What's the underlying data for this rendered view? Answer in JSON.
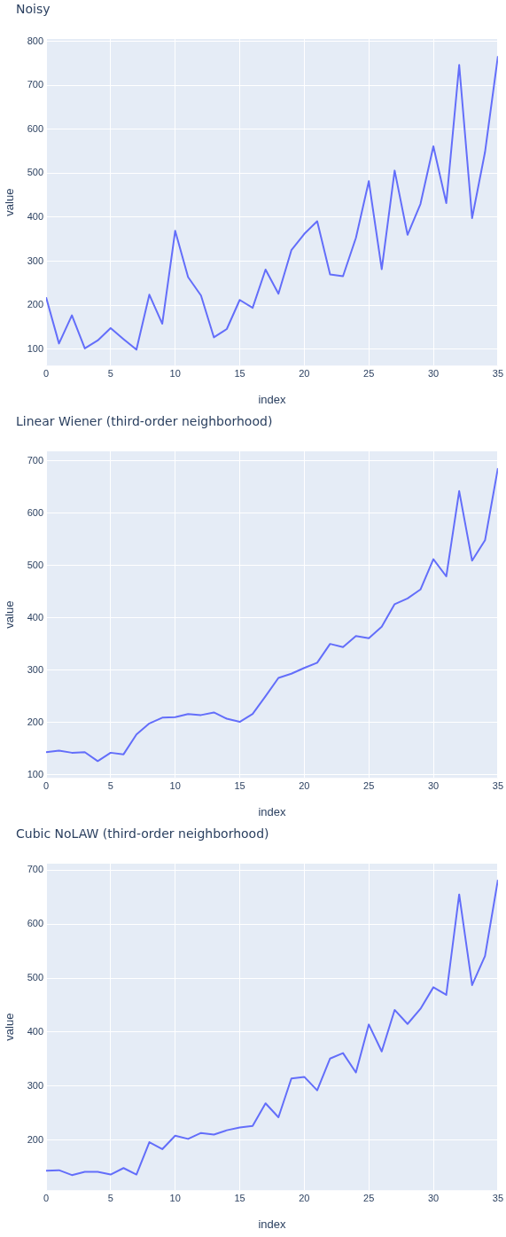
{
  "chart_data": [
    {
      "type": "line",
      "title": "Noisy",
      "xlabel": "index",
      "ylabel": "value",
      "color": "#636efa",
      "grid": true,
      "xlim": [
        0,
        35
      ],
      "xticks": [
        0,
        5,
        10,
        15,
        20,
        25,
        30,
        35
      ],
      "ylim": [
        63,
        805
      ],
      "yticks": [
        100,
        200,
        300,
        400,
        500,
        600,
        700,
        800
      ],
      "x": [
        0,
        1,
        2,
        3,
        4,
        5,
        6,
        7,
        8,
        9,
        10,
        11,
        12,
        13,
        14,
        15,
        16,
        17,
        18,
        19,
        20,
        21,
        22,
        23,
        24,
        25,
        26,
        27,
        28,
        29,
        30,
        31,
        32,
        33,
        34,
        35
      ],
      "values": [
        218,
        113,
        177,
        102,
        120,
        148,
        123,
        99,
        224,
        158,
        369,
        264,
        222,
        127,
        146,
        212,
        194,
        281,
        226,
        325,
        362,
        391,
        270,
        266,
        353,
        482,
        282,
        506,
        360,
        430,
        561,
        432,
        746,
        398,
        548,
        766
      ]
    },
    {
      "type": "line",
      "title": "Linear Wiener (third-order neighborhood)",
      "xlabel": "index",
      "ylabel": "value",
      "color": "#636efa",
      "grid": true,
      "xlim": [
        0,
        35
      ],
      "xticks": [
        0,
        5,
        10,
        15,
        20,
        25,
        30,
        35
      ],
      "ylim": [
        94,
        718
      ],
      "yticks": [
        100,
        200,
        300,
        400,
        500,
        600,
        700
      ],
      "x": [
        0,
        1,
        2,
        3,
        4,
        5,
        6,
        7,
        8,
        9,
        10,
        11,
        12,
        13,
        14,
        15,
        16,
        17,
        18,
        19,
        20,
        21,
        22,
        23,
        24,
        25,
        26,
        27,
        28,
        29,
        30,
        31,
        32,
        33,
        34,
        35
      ],
      "values": [
        143,
        146,
        142,
        143,
        126,
        142,
        139,
        177,
        198,
        209,
        210,
        216,
        214,
        219,
        207,
        201,
        216,
        250,
        285,
        293,
        304,
        314,
        350,
        344,
        365,
        361,
        383,
        426,
        437,
        454,
        512,
        479,
        642,
        509,
        548,
        686
      ]
    },
    {
      "type": "line",
      "title": "Cubic NoLAW (third-order neighborhood)",
      "xlabel": "index",
      "ylabel": "value",
      "color": "#636efa",
      "grid": true,
      "xlim": [
        0,
        35
      ],
      "xticks": [
        0,
        5,
        10,
        15,
        20,
        25,
        30,
        35
      ],
      "ylim": [
        107,
        712
      ],
      "yticks": [
        200,
        300,
        400,
        500,
        600,
        700
      ],
      "x": [
        0,
        1,
        2,
        3,
        4,
        5,
        6,
        7,
        8,
        9,
        10,
        11,
        12,
        13,
        14,
        15,
        16,
        17,
        18,
        19,
        20,
        21,
        22,
        23,
        24,
        25,
        26,
        27,
        28,
        29,
        30,
        31,
        32,
        33,
        34,
        35
      ],
      "values": [
        143,
        144,
        135,
        141,
        141,
        136,
        148,
        136,
        196,
        183,
        208,
        202,
        213,
        210,
        218,
        223,
        226,
        268,
        242,
        314,
        317,
        292,
        351,
        361,
        325,
        414,
        364,
        441,
        415,
        443,
        483,
        469,
        655,
        487,
        541,
        682
      ]
    }
  ]
}
